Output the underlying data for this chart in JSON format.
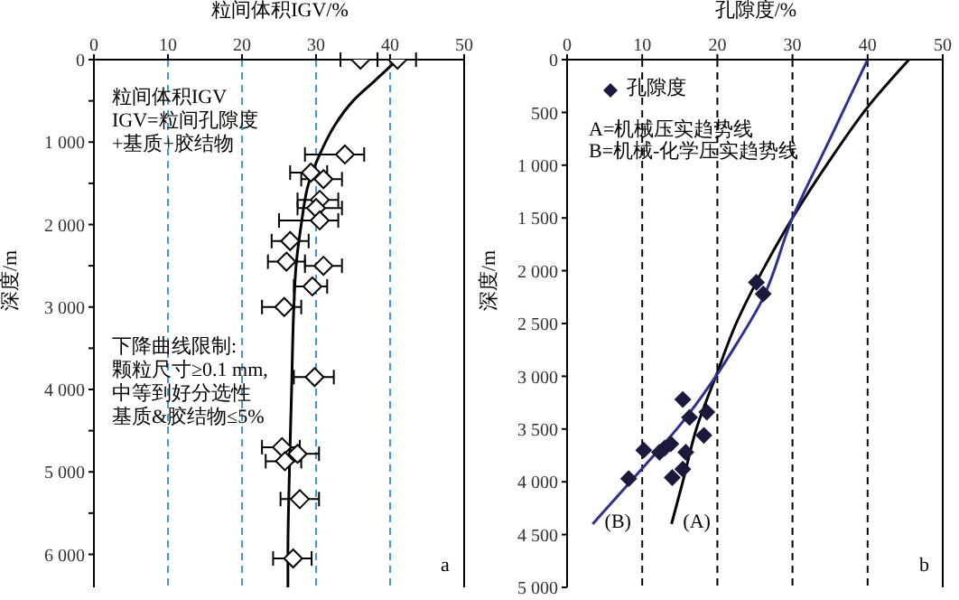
{
  "chart_data": [
    {
      "type": "scatter",
      "xlabel": "粒间体积IGV/%",
      "ylabel": "深度/m",
      "xlim": [
        0,
        50
      ],
      "xticks": [
        {
          "value": 0,
          "label": "0"
        },
        10,
        20,
        30,
        40,
        50
      ],
      "ylim": [
        6400,
        0
      ],
      "yticks": [
        {
          "value": 0,
          "label": "0"
        },
        {
          "value": 500,
          "label": null
        },
        {
          "value": 1000,
          "label": "1 000"
        },
        {
          "value": 1500,
          "label": null
        },
        {
          "value": 2000,
          "label": "2 000"
        },
        {
          "value": 2500,
          "label": null
        },
        {
          "value": 3000,
          "label": "3 000"
        },
        {
          "value": 3500,
          "label": null
        },
        {
          "value": 4000,
          "label": "4 000"
        },
        {
          "value": 4500,
          "label": null
        },
        {
          "value": 5000,
          "label": "5 000"
        },
        {
          "value": 5500,
          "label": null
        },
        {
          "value": 6000,
          "label": "6 000"
        }
      ],
      "grid": "x",
      "legend": false,
      "annotations": [
        "粒间体积IGV",
        "IGV=粒间孔隙度",
        "+基质+胶结物",
        "下降曲线限制:",
        "颗粒尺寸≥0.1 mm,",
        "中等到好分选性",
        "基质&胶结物≤5%",
        "a"
      ],
      "series": [
        {
          "type": "scatter",
          "marker": "diamond",
          "color": "#000000",
          "x": [
            36,
            41,
            33.9,
            29.3,
            31,
            30.5,
            30,
            30.5,
            26.5,
            26,
            31,
            29.5,
            25.7,
            29.8,
            25.4,
            27.5,
            25.8,
            27.8,
            26.9
          ],
          "values": [
            0,
            0,
            1150,
            1370,
            1450,
            1700,
            1800,
            1950,
            2200,
            2450,
            2500,
            2750,
            3000,
            3850,
            4700,
            4780,
            4870,
            5330,
            6050
          ],
          "xerrors": [
            [
              33.3,
              38.3
            ],
            [
              38.3,
              43.5
            ],
            [
              28.5,
              36.5
            ],
            [
              26.5,
              31.5
            ],
            [
              28,
              33.5
            ],
            [
              27.5,
              33
            ],
            [
              27.5,
              33.5
            ],
            [
              25,
              33
            ],
            [
              24,
              29
            ],
            [
              23.5,
              28.5
            ],
            [
              28.5,
              33.5
            ],
            [
              27,
              31.5
            ],
            [
              22.7,
              28
            ],
            [
              27,
              32.4
            ],
            [
              22.7,
              27.8
            ],
            [
              27,
              30.4
            ],
            [
              23.2,
              28
            ],
            [
              25.2,
              30.4
            ],
            [
              24.2,
              29.4
            ]
          ]
        },
        {
          "type": "line",
          "marker": "none",
          "color": "#000000",
          "x": [
            41,
            38,
            35,
            32.5,
            30.5,
            29,
            28,
            27.3,
            27,
            26.7,
            26.4,
            26.2,
            26.2
          ],
          "values": [
            0,
            250,
            500,
            800,
            1150,
            1500,
            2000,
            2500,
            3000,
            4000,
            5000,
            6000,
            6400
          ]
        }
      ]
    },
    {
      "type": "scatter",
      "xlabel": "孔隙度/%",
      "ylabel": "深度/m",
      "xlim": [
        0,
        50
      ],
      "xticks": [
        {
          "value": 0,
          "label": "0"
        },
        10,
        20,
        30,
        40,
        50
      ],
      "ylim": [
        5000,
        0
      ],
      "yticks": [
        {
          "value": 0,
          "label": "0"
        },
        500,
        {
          "value": 1000,
          "label": "1 000"
        },
        {
          "value": 1500,
          "label": "1 500"
        },
        {
          "value": 2000,
          "label": "2 000"
        },
        {
          "value": 2500,
          "label": "2 500"
        },
        {
          "value": 3000,
          "label": "3 000"
        },
        {
          "value": 3500,
          "label": "3 500"
        },
        {
          "value": 4000,
          "label": "4 000"
        },
        {
          "value": 4500,
          "label": "4 500"
        },
        {
          "value": 5000,
          "label": "5 000"
        }
      ],
      "grid": "x",
      "legend": "top left",
      "annotations": [
        "A=机械压实趋势线",
        "B=机械-化学压实趋势线",
        "b"
      ],
      "series": [
        {
          "type": "scatter",
          "marker": "diamond",
          "name": "孔隙度",
          "color": "#1a1a3e",
          "x": [
            25.2,
            26.1,
            15.4,
            16.3,
            18.6,
            18.2,
            13.8,
            13,
            12.3,
            10.2,
            15.8,
            15.4,
            14,
            8.2
          ],
          "values": [
            2110,
            2220,
            3220,
            3390,
            3340,
            3560,
            3640,
            3680,
            3720,
            3700,
            3720,
            3880,
            3960,
            3970
          ]
        },
        {
          "type": "line",
          "marker": "none",
          "name": "(A)",
          "color": "#000000",
          "x": [
            45.5,
            40,
            35,
            30,
            26,
            22.5,
            19.8,
            17.2,
            15.4,
            13.9
          ],
          "values": [
            0,
            450,
            950,
            1500,
            2000,
            2500,
            3000,
            3500,
            4000,
            4400
          ]
        },
        {
          "type": "line",
          "marker": "none",
          "name": "(B)",
          "color": "#2e3192",
          "x": [
            40,
            35,
            30,
            25.8,
            22.5,
            19.8,
            15.4,
            9.8,
            3.4
          ],
          "values": [
            0,
            750,
            1500,
            2300,
            2700,
            3000,
            3430,
            3890,
            4400
          ]
        }
      ]
    }
  ]
}
